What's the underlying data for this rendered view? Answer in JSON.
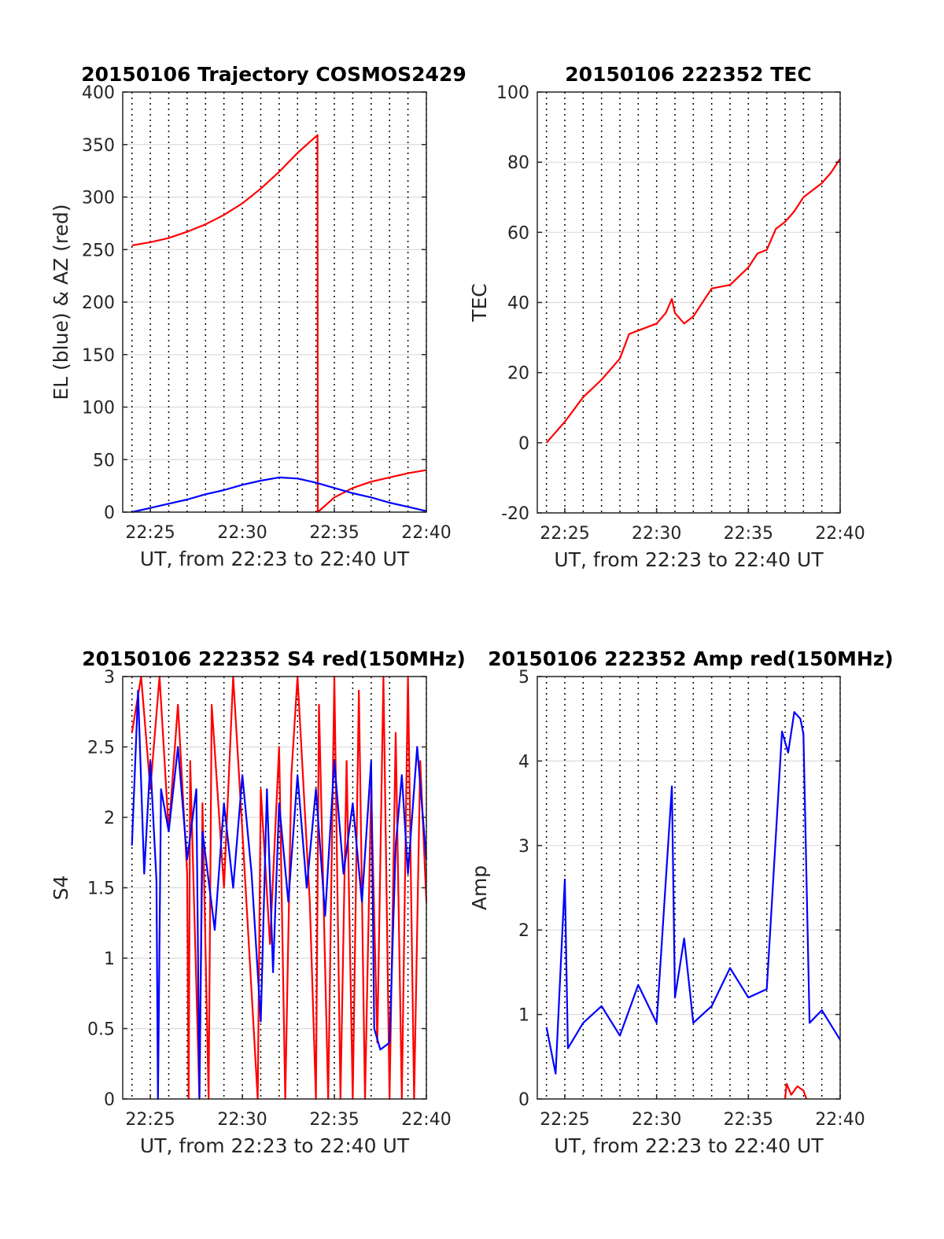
{
  "figure": {
    "background": "#ffffff"
  },
  "chart_data": [
    {
      "id": "trajectory",
      "type": "line",
      "title": "20150106 Trajectory COSMOS2429",
      "xlabel": "UT, from 22:23 to 22:40 UT",
      "ylabel": "EL (blue) & AZ (red)",
      "xlim": [
        "22:23:30",
        "22:40:00"
      ],
      "ylim": [
        0,
        400
      ],
      "xticks": [
        "22:25",
        "22:30",
        "22:35",
        "22:40"
      ],
      "yticks": [
        0,
        50,
        100,
        150,
        200,
        250,
        300,
        350,
        400
      ],
      "grid": true,
      "series": [
        {
          "color": "#ff0000",
          "points": [
            [
              "22:24",
              254
            ],
            [
              "22:25",
              257
            ],
            [
              "22:26",
              261
            ],
            [
              "22:27",
              267
            ],
            [
              "22:28",
              274
            ],
            [
              "22:29",
              283
            ],
            [
              "22:30",
              294
            ],
            [
              "22:31",
              308
            ],
            [
              "22:32",
              324
            ],
            [
              "22:33",
              342
            ],
            [
              "22:34:05",
              359
            ],
            [
              "22:34:06",
              0
            ],
            [
              "22:35",
              14
            ],
            [
              "22:36",
              23
            ],
            [
              "22:37",
              29
            ],
            [
              "22:38",
              33
            ],
            [
              "22:39",
              37
            ],
            [
              "22:40",
              40
            ]
          ]
        },
        {
          "color": "#0000ff",
          "points": [
            [
              "22:24",
              0
            ],
            [
              "22:25",
              4
            ],
            [
              "22:26",
              8
            ],
            [
              "22:27",
              12
            ],
            [
              "22:28",
              17
            ],
            [
              "22:29",
              21
            ],
            [
              "22:30",
              26
            ],
            [
              "22:31",
              30
            ],
            [
              "22:32",
              33
            ],
            [
              "22:33",
              32
            ],
            [
              "22:34",
              28
            ],
            [
              "22:35",
              23
            ],
            [
              "22:36",
              18
            ],
            [
              "22:37",
              14
            ],
            [
              "22:38",
              9
            ],
            [
              "22:39",
              5
            ],
            [
              "22:40",
              1
            ]
          ]
        }
      ]
    },
    {
      "id": "tec",
      "type": "line",
      "title": "20150106 222352 TEC",
      "xlabel": "UT, from 22:23 to 22:40 UT",
      "ylabel": "TEC",
      "xlim": [
        "22:23:30",
        "22:40:00"
      ],
      "ylim": [
        -20,
        100
      ],
      "xticks": [
        "22:25",
        "22:30",
        "22:35",
        "22:40"
      ],
      "yticks": [
        -20,
        0,
        20,
        40,
        60,
        80,
        100
      ],
      "grid": true,
      "series": [
        {
          "color": "#ff0000",
          "points": [
            [
              "22:24",
              0
            ],
            [
              "22:25",
              6
            ],
            [
              "22:26",
              13
            ],
            [
              "22:27",
              18
            ],
            [
              "22:28",
              24
            ],
            [
              "22:28:30",
              31
            ],
            [
              "22:29",
              32
            ],
            [
              "22:30",
              34
            ],
            [
              "22:30:30",
              37
            ],
            [
              "22:30:50",
              41
            ],
            [
              "22:31",
              37
            ],
            [
              "22:31:30",
              34
            ],
            [
              "22:32",
              36
            ],
            [
              "22:33",
              44
            ],
            [
              "22:34",
              45
            ],
            [
              "22:35",
              50
            ],
            [
              "22:35:30",
              54
            ],
            [
              "22:36",
              55
            ],
            [
              "22:36:30",
              61
            ],
            [
              "22:37",
              63
            ],
            [
              "22:37:30",
              66
            ],
            [
              "22:38",
              70
            ],
            [
              "22:38:30",
              72
            ],
            [
              "22:39",
              74
            ],
            [
              "22:39:30",
              77
            ],
            [
              "22:40",
              81
            ]
          ]
        }
      ]
    },
    {
      "id": "s4",
      "type": "line",
      "title": "20150106 222352 S4 red(150MHz)",
      "xlabel": "UT, from 22:23 to 22:40 UT",
      "ylabel": "S4",
      "xlim": [
        "22:23:30",
        "22:40:00"
      ],
      "ylim": [
        0,
        3
      ],
      "xticks": [
        "22:25",
        "22:30",
        "22:35",
        "22:40"
      ],
      "yticks": [
        0,
        0.5,
        1,
        1.5,
        2,
        2.5,
        3
      ],
      "grid": true,
      "series": [
        {
          "color": "#ff0000",
          "points": [
            [
              "22:24",
              2.6
            ],
            [
              "22:24:30",
              3
            ],
            [
              "22:25",
              2.2
            ],
            [
              "22:25:30",
              3
            ],
            [
              "22:26",
              1.9
            ],
            [
              "22:26:30",
              2.8
            ],
            [
              "22:27",
              1.6
            ],
            [
              "22:27:05",
              0
            ],
            [
              "22:27:10",
              2.4
            ],
            [
              "22:27:40",
              0
            ],
            [
              "22:27:50",
              2.1
            ],
            [
              "22:28:10",
              0
            ],
            [
              "22:28:20",
              2.8
            ],
            [
              "22:29",
              1.5
            ],
            [
              "22:29:30",
              3
            ],
            [
              "22:30",
              1.9
            ],
            [
              "22:30:50",
              0
            ],
            [
              "22:31",
              2.2
            ],
            [
              "22:31:30",
              1.1
            ],
            [
              "22:32",
              2.5
            ],
            [
              "22:32:20",
              0
            ],
            [
              "22:32:40",
              2.3
            ],
            [
              "22:33",
              3
            ],
            [
              "22:33:40",
              1.4
            ],
            [
              "22:34",
              0
            ],
            [
              "22:34:10",
              2.8
            ],
            [
              "22:34:40",
              0
            ],
            [
              "22:35",
              3
            ],
            [
              "22:35:20",
              0
            ],
            [
              "22:35:40",
              2.4
            ],
            [
              "22:36",
              0
            ],
            [
              "22:36:20",
              2.9
            ],
            [
              "22:36:40",
              0
            ],
            [
              "22:37",
              2.2
            ],
            [
              "22:37:20",
              0.4
            ],
            [
              "22:37:40",
              3
            ],
            [
              "22:38",
              0
            ],
            [
              "22:38:20",
              2.6
            ],
            [
              "22:38:40",
              0
            ],
            [
              "22:39",
              3
            ],
            [
              "22:39:20",
              0
            ],
            [
              "22:39:40",
              2.4
            ],
            [
              "22:40",
              1.4
            ]
          ]
        },
        {
          "color": "#0000ff",
          "points": [
            [
              "22:24",
              1.8
            ],
            [
              "22:24:20",
              2.9
            ],
            [
              "22:24:40",
              1.6
            ],
            [
              "22:25",
              2.4
            ],
            [
              "22:25:20",
              1.55
            ],
            [
              "22:25:25",
              0
            ],
            [
              "22:25:35",
              2.2
            ],
            [
              "22:26",
              1.9
            ],
            [
              "22:26:30",
              2.5
            ],
            [
              "22:27",
              1.7
            ],
            [
              "22:27:30",
              2.2
            ],
            [
              "22:27:40",
              0
            ],
            [
              "22:27:50",
              1.9
            ],
            [
              "22:28:30",
              1.2
            ],
            [
              "22:29",
              2.1
            ],
            [
              "22:29:30",
              1.5
            ],
            [
              "22:30",
              2.3
            ],
            [
              "22:30:30",
              1.6
            ],
            [
              "22:31",
              0.55
            ],
            [
              "22:31:20",
              2.2
            ],
            [
              "22:31:40",
              0.9
            ],
            [
              "22:32",
              2.1
            ],
            [
              "22:32:30",
              1.4
            ],
            [
              "22:33",
              2.3
            ],
            [
              "22:33:30",
              1.5
            ],
            [
              "22:34",
              2.2
            ],
            [
              "22:34:30",
              1.3
            ],
            [
              "22:35",
              2.4
            ],
            [
              "22:35:30",
              1.6
            ],
            [
              "22:36",
              2.1
            ],
            [
              "22:36:30",
              1.4
            ],
            [
              "22:37",
              2.4
            ],
            [
              "22:37:10",
              0.5
            ],
            [
              "22:37:30",
              0.35
            ],
            [
              "22:38",
              0.4
            ],
            [
              "22:38:20",
              1.8
            ],
            [
              "22:38:40",
              2.3
            ],
            [
              "22:39",
              1.6
            ],
            [
              "22:39:30",
              2.5
            ],
            [
              "22:40",
              1.7
            ]
          ]
        }
      ]
    },
    {
      "id": "amp",
      "type": "line",
      "title": "20150106 222352 Amp red(150MHz)",
      "xlabel": "UT, from 22:23 to 22:40 UT",
      "ylabel": "Amp",
      "xlim": [
        "22:23:30",
        "22:40:00"
      ],
      "ylim": [
        0,
        5
      ],
      "xticks": [
        "22:25",
        "22:30",
        "22:35",
        "22:40"
      ],
      "yticks": [
        0,
        1,
        2,
        3,
        4,
        5
      ],
      "grid": true,
      "series": [
        {
          "color": "#ff0000",
          "points": [
            [
              "22:37",
              0
            ],
            [
              "22:37:05",
              0.18
            ],
            [
              "22:37:20",
              0.05
            ],
            [
              "22:37:40",
              0.15
            ],
            [
              "22:38",
              0.1
            ],
            [
              "22:38:10",
              0
            ]
          ]
        },
        {
          "color": "#0000ff",
          "points": [
            [
              "22:24",
              0.85
            ],
            [
              "22:24:30",
              0.3
            ],
            [
              "22:25",
              2.6
            ],
            [
              "22:25:10",
              0.6
            ],
            [
              "22:26",
              0.9
            ],
            [
              "22:27",
              1.1
            ],
            [
              "22:28",
              0.75
            ],
            [
              "22:29",
              1.35
            ],
            [
              "22:30",
              0.9
            ],
            [
              "22:30:50",
              3.7
            ],
            [
              "22:31",
              1.2
            ],
            [
              "22:31:30",
              1.9
            ],
            [
              "22:32",
              0.9
            ],
            [
              "22:33",
              1.1
            ],
            [
              "22:34",
              1.55
            ],
            [
              "22:35",
              1.2
            ],
            [
              "22:36",
              1.3
            ],
            [
              "22:36:50",
              4.35
            ],
            [
              "22:37:10",
              4.1
            ],
            [
              "22:37:30",
              4.58
            ],
            [
              "22:37:50",
              4.5
            ],
            [
              "22:38",
              4.32
            ],
            [
              "22:38:20",
              0.9
            ],
            [
              "22:39",
              1.05
            ],
            [
              "22:40",
              0.7
            ]
          ]
        }
      ]
    }
  ]
}
